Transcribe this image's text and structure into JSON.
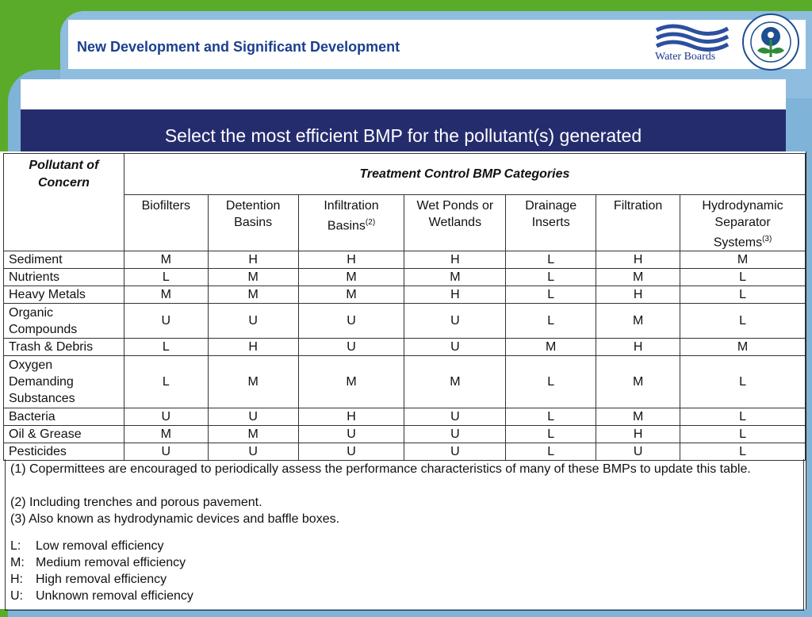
{
  "header": {
    "title": "New Development and Significant Development",
    "logo_text": "Water Boards"
  },
  "banner": {
    "text": "Select the most efficient BMP for the pollutant(s) generated"
  },
  "table": {
    "pollutant_header": "Pollutant of Concern",
    "category_header": "Treatment Control BMP Categories",
    "columns": [
      {
        "label": "Biofilters",
        "sup": ""
      },
      {
        "label": "Detention Basins",
        "sup": ""
      },
      {
        "label": "Infiltration Basins",
        "sup": "(2)"
      },
      {
        "label": "Wet Ponds or Wetlands",
        "sup": ""
      },
      {
        "label": "Drainage Inserts",
        "sup": ""
      },
      {
        "label": "Filtration",
        "sup": ""
      },
      {
        "label": "Hydrodynamic Separator Systems",
        "sup": "(3)"
      }
    ],
    "rows": [
      {
        "pollutant": "Sediment",
        "values": [
          "M",
          "H",
          "H",
          "H",
          "L",
          "H",
          "M"
        ]
      },
      {
        "pollutant": "Nutrients",
        "values": [
          "L",
          "M",
          "M",
          "M",
          "L",
          "M",
          "L"
        ]
      },
      {
        "pollutant": "Heavy Metals",
        "values": [
          "M",
          "M",
          "M",
          "H",
          "L",
          "H",
          "L"
        ]
      },
      {
        "pollutant": "Organic Compounds",
        "values": [
          "U",
          "U",
          "U",
          "U",
          "L",
          "M",
          "L"
        ]
      },
      {
        "pollutant": "Trash & Debris",
        "values": [
          "L",
          "H",
          "U",
          "U",
          "M",
          "H",
          "M"
        ]
      },
      {
        "pollutant": "Oxygen Demanding Substances",
        "values": [
          "L",
          "M",
          "M",
          "M",
          "L",
          "M",
          "L"
        ]
      },
      {
        "pollutant": "Bacteria",
        "values": [
          "U",
          "U",
          "H",
          "U",
          "L",
          "M",
          "L"
        ]
      },
      {
        "pollutant": "Oil & Grease",
        "values": [
          "M",
          "M",
          "U",
          "U",
          "L",
          "H",
          "L"
        ]
      },
      {
        "pollutant": "Pesticides",
        "values": [
          "U",
          "U",
          "U",
          "U",
          "L",
          "U",
          "L"
        ]
      }
    ]
  },
  "notes": [
    "(1) Copermittees are encouraged to periodically assess the performance characteristics of many of these BMPs to update this table.",
    "(2) Including trenches and porous pavement.",
    "(3) Also known as hydrodynamic devices and baffle boxes."
  ],
  "legend": [
    {
      "key": "L:",
      "text": "Low removal efficiency"
    },
    {
      "key": "M:",
      "text": "Medium removal efficiency"
    },
    {
      "key": "H:",
      "text": "High removal efficiency"
    },
    {
      "key": "U:",
      "text": "Unknown removal efficiency"
    }
  ],
  "icons": {
    "water_boards_logo": "water-waves-icon",
    "epa_seal": "epa-seal-icon"
  },
  "colors": {
    "background": "#5aab2a",
    "banner": "#252c6e",
    "title": "#1b3f8f"
  }
}
